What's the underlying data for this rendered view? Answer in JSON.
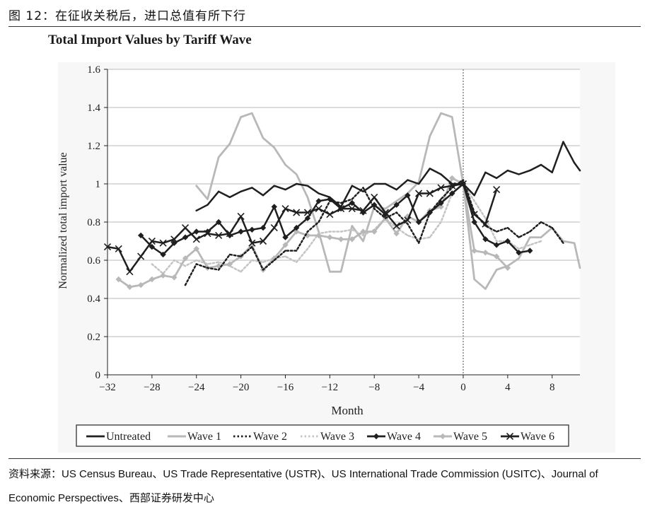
{
  "caption": "图 12：在征收关税后，进口总值有所下行",
  "source": "资料来源：US Census Bureau、US Trade Representative (USTR)、US International Trade Commission (USITC)、Journal of Economic Perspectives、西部证券研发中心",
  "colors": {
    "untreated": "#1f1f1f",
    "wave1": "#b8b8b8",
    "wave2": "#1f1f1f",
    "wave3": "#c4c4c4",
    "wave4": "#1f1f1f",
    "wave5": "#b8b8b8",
    "wave6": "#1f1f1f",
    "plot_bg": "#f7f7f7"
  },
  "chart_data": {
    "type": "line",
    "title": "Total Import Values by Tariff Wave",
    "xlabel": "Month",
    "ylabel": "Normalized total import value",
    "xlim": [
      -32,
      10.5
    ],
    "ylim": [
      0,
      1.6
    ],
    "xticks": [
      -32,
      -28,
      -24,
      -20,
      -16,
      -12,
      -8,
      -4,
      0,
      4,
      8
    ],
    "yticks": [
      0,
      0.2,
      0.4,
      0.6,
      0.8,
      1,
      1.2,
      1.4,
      1.6
    ],
    "xtick_labels": [
      "−32",
      "−28",
      "−24",
      "−20",
      "−16",
      "−12",
      "−8",
      "−4",
      "0",
      "4",
      "8"
    ],
    "ytick_labels": [
      "0",
      "0.2",
      "0.4",
      "0.6",
      "0.8",
      "1",
      "1.2",
      "1.4",
      "1.6"
    ],
    "vline_x": 0,
    "grid": "horizontal",
    "series": [
      {
        "name": "Untreated",
        "style": "solid-dark",
        "x": [
          -24,
          -23,
          -22,
          -21,
          -20,
          -19,
          -18,
          -17,
          -16,
          -15,
          -14,
          -13,
          -12,
          -11,
          -10,
          -9,
          -8,
          -7,
          -6,
          -5,
          -4,
          -3,
          -2,
          -1,
          0,
          1,
          2,
          3,
          4,
          5,
          6,
          7,
          8,
          9,
          10,
          10.5
        ],
        "values": [
          0.86,
          0.89,
          0.96,
          0.93,
          0.96,
          0.98,
          0.94,
          0.99,
          0.97,
          1.0,
          0.99,
          0.95,
          0.93,
          0.88,
          0.99,
          0.96,
          1.0,
          1.0,
          0.97,
          1.02,
          1.0,
          1.08,
          1.05,
          1.0,
          1.0,
          0.94,
          1.06,
          1.03,
          1.07,
          1.05,
          1.07,
          1.1,
          1.06,
          1.22,
          1.11,
          1.07
        ]
      },
      {
        "name": "Wave 1",
        "style": "solid-light",
        "x": [
          -24,
          -23,
          -22,
          -21,
          -20,
          -19,
          -18,
          -17,
          -16,
          -15,
          -14,
          -13,
          -12,
          -11,
          -10,
          -9,
          -8,
          -7,
          -6,
          -5,
          -4,
          -3,
          -2,
          -1,
          0,
          1,
          2,
          3,
          4,
          5,
          6,
          7,
          8,
          9,
          10,
          10.5
        ],
        "values": [
          0.99,
          0.92,
          1.14,
          1.21,
          1.35,
          1.37,
          1.24,
          1.19,
          1.1,
          1.05,
          0.93,
          0.75,
          0.54,
          0.54,
          0.78,
          0.7,
          0.88,
          0.87,
          0.91,
          0.95,
          1.01,
          1.25,
          1.37,
          1.35,
          1.0,
          0.5,
          0.45,
          0.55,
          0.57,
          0.61,
          0.72,
          0.72,
          0.77,
          0.7,
          0.69,
          0.56
        ]
      },
      {
        "name": "Wave 2",
        "style": "dotted-dark",
        "x": [
          -25,
          -24,
          -23,
          -22,
          -21,
          -20,
          -19,
          -18,
          -17,
          -16,
          -15,
          -14,
          -13,
          -12,
          -11,
          -10,
          -9,
          -8,
          -7,
          -6,
          -5,
          -4,
          -3,
          -2,
          -1,
          0,
          1,
          2,
          3,
          4,
          5,
          6,
          7,
          8,
          9
        ],
        "values": [
          0.47,
          0.58,
          0.56,
          0.55,
          0.63,
          0.62,
          0.67,
          0.55,
          0.6,
          0.65,
          0.65,
          0.75,
          0.8,
          0.91,
          0.9,
          0.92,
          0.98,
          0.87,
          0.82,
          0.85,
          0.79,
          0.69,
          0.85,
          0.92,
          0.98,
          1.02,
          0.85,
          0.78,
          0.75,
          0.77,
          0.72,
          0.75,
          0.8,
          0.77,
          0.69
        ]
      },
      {
        "name": "Wave 3",
        "style": "dotted-light",
        "x": [
          -28,
          -27,
          -26,
          -25,
          -24,
          -23,
          -22,
          -21,
          -20,
          -19,
          -18,
          -17,
          -16,
          -15,
          -14,
          -13,
          -12,
          -11,
          -10,
          -9,
          -8,
          -7,
          -6,
          -5,
          -4,
          -3,
          -2,
          -1,
          0,
          1,
          2,
          3,
          4,
          5,
          6,
          7
        ],
        "values": [
          0.58,
          0.53,
          0.6,
          0.57,
          0.6,
          0.58,
          0.59,
          0.57,
          0.54,
          0.6,
          0.59,
          0.61,
          0.62,
          0.59,
          0.66,
          0.74,
          0.75,
          0.75,
          0.76,
          0.73,
          0.76,
          0.82,
          0.77,
          0.73,
          0.71,
          0.72,
          0.8,
          0.95,
          1.0,
          0.91,
          0.82,
          0.7,
          0.7,
          0.66,
          0.68,
          0.7
        ]
      },
      {
        "name": "Wave 4",
        "style": "solid-dark-diamond",
        "x": [
          -29,
          -28,
          -27,
          -26,
          -25,
          -24,
          -23,
          -22,
          -21,
          -20,
          -19,
          -18,
          -17,
          -16,
          -15,
          -14,
          -13,
          -12,
          -11,
          -10,
          -9,
          -8,
          -7,
          -6,
          -5,
          -4,
          -3,
          -2,
          -1,
          0,
          1,
          2,
          3,
          4,
          5,
          6
        ],
        "values": [
          0.73,
          0.67,
          0.63,
          0.69,
          0.72,
          0.75,
          0.75,
          0.8,
          0.73,
          0.75,
          0.76,
          0.77,
          0.88,
          0.72,
          0.77,
          0.82,
          0.91,
          0.92,
          0.87,
          0.9,
          0.85,
          0.89,
          0.84,
          0.89,
          0.94,
          0.8,
          0.85,
          0.9,
          0.95,
          1.0,
          0.8,
          0.71,
          0.68,
          0.7,
          0.64,
          0.65
        ]
      },
      {
        "name": "Wave 5",
        "style": "solid-light-diamond",
        "x": [
          -31,
          -30,
          -29,
          -28,
          -27,
          -26,
          -25,
          -24,
          -23,
          -22,
          -21,
          -20,
          -19,
          -18,
          -17,
          -16,
          -15,
          -14,
          -13,
          -12,
          -11,
          -10,
          -9,
          -8,
          -7,
          -6,
          -5,
          -4,
          -3,
          -2,
          -1,
          0,
          1,
          2,
          3,
          4
        ],
        "values": [
          0.5,
          0.46,
          0.47,
          0.5,
          0.52,
          0.51,
          0.61,
          0.66,
          0.56,
          0.57,
          0.58,
          0.62,
          0.68,
          0.55,
          0.61,
          0.68,
          0.75,
          0.73,
          0.73,
          0.72,
          0.71,
          0.71,
          0.75,
          0.75,
          0.82,
          0.74,
          0.83,
          0.8,
          0.86,
          0.88,
          1.03,
          1.0,
          0.65,
          0.64,
          0.62,
          0.56
        ]
      },
      {
        "name": "Wave 6",
        "style": "solid-dark-x",
        "x": [
          -32,
          -31,
          -30,
          -29,
          -28,
          -27,
          -26,
          -25,
          -24,
          -23,
          -22,
          -21,
          -20,
          -19,
          -18,
          -17,
          -16,
          -15,
          -14,
          -13,
          -12,
          -11,
          -10,
          -9,
          -8,
          -7,
          -6,
          -5,
          -4,
          -3,
          -2,
          -1,
          0,
          1,
          2,
          3
        ],
        "values": [
          0.67,
          0.66,
          0.54,
          0.62,
          0.7,
          0.69,
          0.71,
          0.77,
          0.71,
          0.74,
          0.73,
          0.74,
          0.83,
          0.69,
          0.7,
          0.77,
          0.87,
          0.85,
          0.85,
          0.87,
          0.84,
          0.87,
          0.87,
          0.86,
          0.93,
          0.85,
          0.78,
          0.81,
          0.95,
          0.95,
          0.98,
          0.99,
          1.0,
          0.84,
          0.79,
          0.97
        ]
      }
    ]
  }
}
